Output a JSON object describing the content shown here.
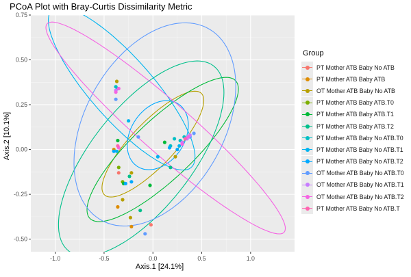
{
  "chart_data": {
    "type": "scatter",
    "title": "PCoA Plot with Bray-Curtis Dissimilarity Metric",
    "xlabel": "Axis.1   [24.1%]",
    "ylabel": "Axis.2   [10.1%]",
    "xlim": [
      -1.25,
      1.45
    ],
    "ylim": [
      -0.57,
      0.75
    ],
    "xticks": [
      -1.0,
      -0.5,
      0.0,
      0.5,
      1.0
    ],
    "xtick_labels": [
      "-1.0",
      "-0.5",
      "0.0",
      "0.5",
      "1.0"
    ],
    "yticks": [
      -0.5,
      -0.25,
      0.0,
      0.25,
      0.5,
      0.75
    ],
    "ytick_labels": [
      "-0.50",
      "-0.25",
      "0.00",
      "0.25",
      "0.50",
      "0.75"
    ],
    "grid": true,
    "legend_position": "right",
    "legend_title": "Group",
    "series": [
      {
        "name": "PT Mother ATB Baby No ATB",
        "color": "#F8766D",
        "points": [
          [
            -0.02,
            -0.42
          ],
          [
            -0.35,
            -0.13
          ]
        ],
        "ellipse": null
      },
      {
        "name": "PT Mother ATB Baby ATB",
        "color": "#DE8C00",
        "points": [
          [
            -0.36,
            -0.32
          ],
          [
            -0.22,
            -0.43
          ],
          [
            -0.4,
            0.0
          ]
        ],
        "ellipse": null
      },
      {
        "name": "OT Mother ATB Baby No ATB",
        "color": "#B79F00",
        "points": [
          [
            -0.31,
            -0.28
          ],
          [
            -0.23,
            -0.38
          ],
          [
            -0.37,
            0.38
          ],
          [
            -0.22,
            -0.13
          ],
          [
            0.23,
            -0.04
          ]
        ],
        "ellipse": {
          "cx": 0.0,
          "cy": 0.03,
          "rx": 0.58,
          "ry": 0.15,
          "angle": 27
        }
      },
      {
        "name": "PT Mother ATB Baby ATB.T0",
        "color": "#7CAE00",
        "points": [
          [
            -0.31,
            -0.18
          ],
          [
            -0.35,
            -0.1
          ]
        ],
        "ellipse": null
      },
      {
        "name": "PT Mother ATB Baby ATB.T1",
        "color": "#00BA38",
        "points": [
          [
            -0.03,
            -0.2
          ],
          [
            0.12,
            0.04
          ],
          [
            -0.3,
            -0.19
          ],
          [
            -0.36,
            0.05
          ]
        ],
        "ellipse": {
          "cx": 0.1,
          "cy": 0.0,
          "rx": 0.85,
          "ry": 0.2,
          "angle": 25
        }
      },
      {
        "name": "PT Mother ATB Baby ATB.T2",
        "color": "#00C08B",
        "points": [
          [
            -0.13,
            -0.34
          ],
          [
            0.18,
            -0.1
          ],
          [
            -0.24,
            -0.15
          ]
        ],
        "ellipse": {
          "cx": -0.12,
          "cy": -0.05,
          "rx": 0.94,
          "ry": 0.36,
          "angle": 28
        }
      },
      {
        "name": "PT Mother ATB Baby No ATB.T0",
        "color": "#00BFC4",
        "points": [
          [
            0.28,
            0.05
          ],
          [
            0.22,
            0.06
          ],
          [
            0.32,
            0.07
          ],
          [
            0.18,
            0.02
          ],
          [
            -0.38,
            0.35
          ],
          [
            -0.36,
            0.34
          ]
        ],
        "ellipse": null
      },
      {
        "name": "PT Mother ATB Baby No ATB.T1",
        "color": "#00B4F0",
        "points": [
          [
            -0.25,
            0.16
          ],
          [
            0.05,
            -0.04
          ],
          [
            0.27,
            0.02
          ],
          [
            0.3,
            0.04
          ],
          [
            -0.37,
            -0.01
          ]
        ],
        "ellipse": {
          "cx": -0.32,
          "cy": 0.34,
          "rx": 0.85,
          "ry": 0.22,
          "angle": -29
        }
      },
      {
        "name": "PT Mother ATB Baby No ATB.T2",
        "color": "#00A9FF",
        "points": [
          [
            -0.22,
            -0.18
          ],
          [
            0.17,
            0.01
          ],
          [
            0.25,
            0.0
          ],
          [
            -0.4,
            -0.01
          ],
          [
            -0.28,
            -0.19
          ]
        ],
        "ellipse": {
          "cx": 0.05,
          "cy": 0.08,
          "rx": 0.32,
          "ry": 0.18,
          "angle": 15
        }
      },
      {
        "name": "OT Mother ATB Baby No ATB.T0",
        "color": "#619CFF",
        "points": [
          [
            -0.08,
            -0.47
          ],
          [
            -0.15,
            0.07
          ],
          [
            0.38,
            0.07
          ],
          [
            0.42,
            0.09
          ],
          [
            -0.38,
            0.28
          ]
        ],
        "ellipse": {
          "cx": 0.02,
          "cy": 0.14,
          "rx": 0.87,
          "ry": 0.5,
          "angle": 22
        }
      },
      {
        "name": "OT Mother ATB Baby No ATB.T1",
        "color": "#C77CFF",
        "points": [
          [
            0.35,
            0.06
          ],
          [
            0.38,
            0.08
          ],
          [
            0.3,
            0.04
          ],
          [
            -0.38,
            0.33
          ]
        ],
        "ellipse": null
      },
      {
        "name": "OT Mother ATB Baby No ATB.T2",
        "color": "#F564E3",
        "points": [
          [
            -0.35,
            0.34
          ],
          [
            0.36,
            0.07
          ],
          [
            0.3,
            0.03
          ],
          [
            -0.38,
            0.32
          ],
          [
            -0.35,
            0.01
          ]
        ],
        "ellipse": {
          "cx": 0.13,
          "cy": 0.12,
          "rx": 1.35,
          "ry": 0.17,
          "angle": -25
        }
      },
      {
        "name": "PT Mother ATB Baby No ATB.T",
        "color": "#FF64B0",
        "points": [
          [
            0.33,
            0.06
          ],
          [
            -0.36,
            0.02
          ]
        ],
        "ellipse": null
      }
    ]
  }
}
